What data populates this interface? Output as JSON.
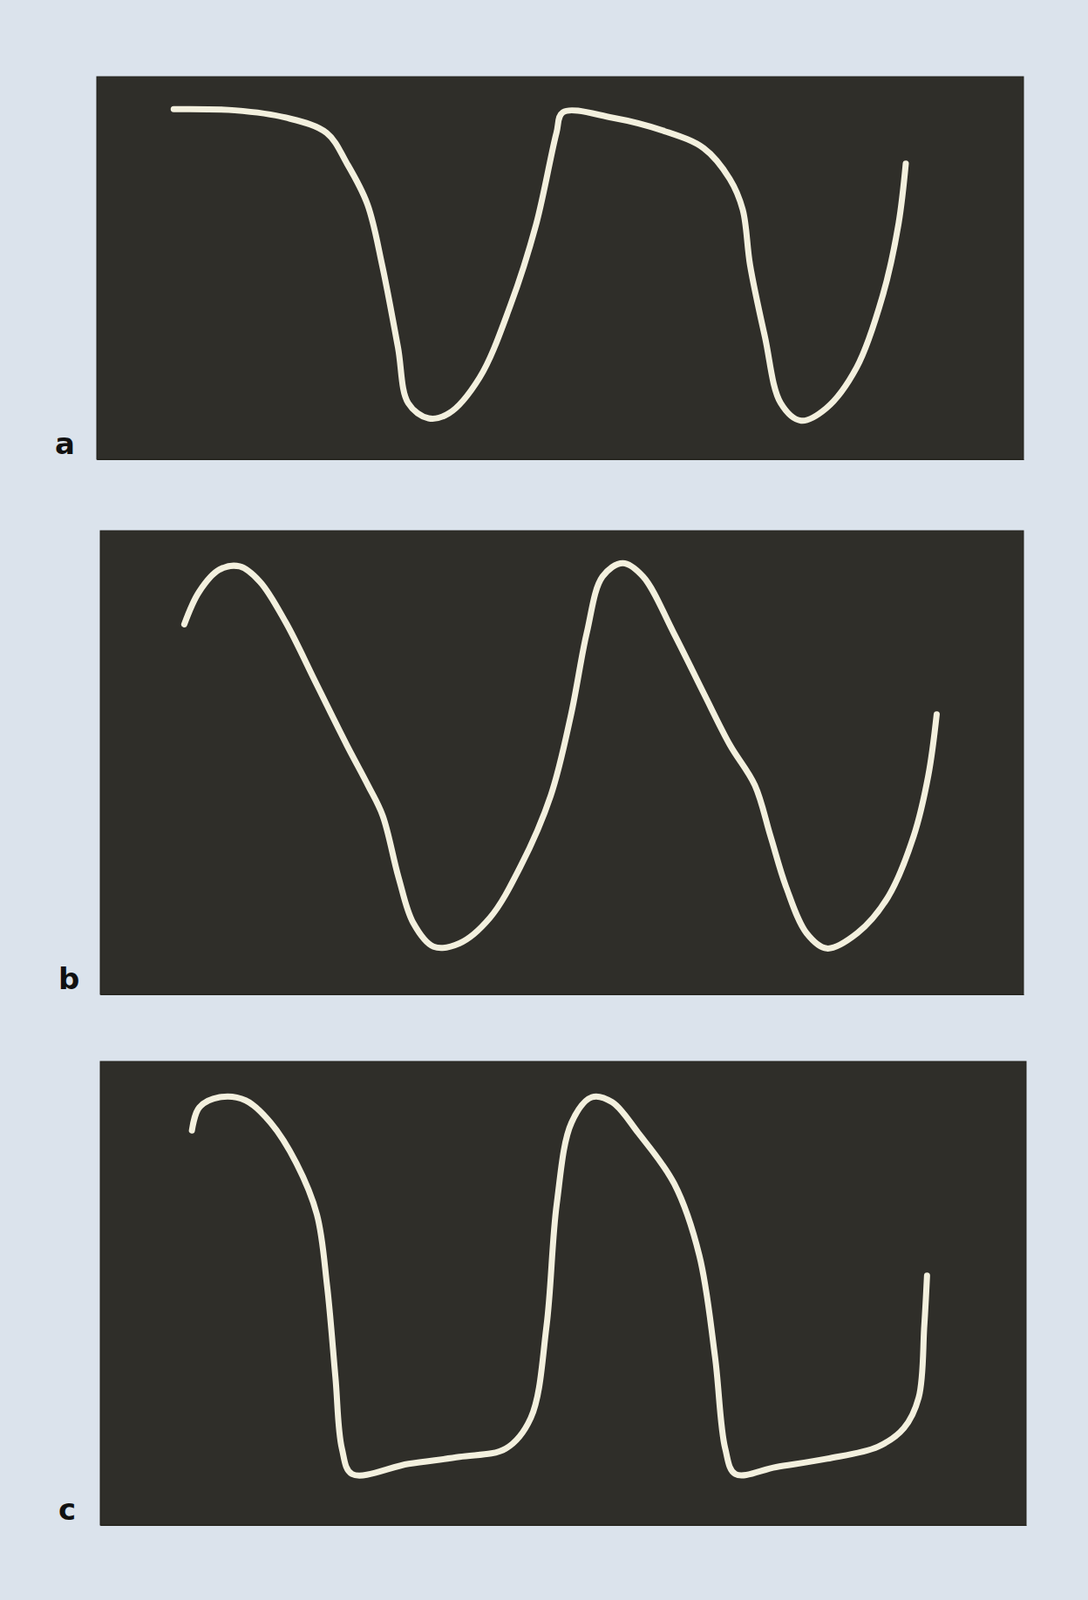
{
  "chart_data": [
    {
      "type": "line",
      "title": "a",
      "color": "#f3f0de",
      "tick_labels": false,
      "grid": false,
      "xlim": [
        0,
        100
      ],
      "ylim": [
        0,
        100
      ],
      "x": [
        8.3,
        14.9,
        20.4,
        24.8,
        27.0,
        29.2,
        30.8,
        32.5,
        33.6,
        35.8,
        38.0,
        41.3,
        44.6,
        47.4,
        49.6,
        50.3,
        55.6,
        61.1,
        65.5,
        68.3,
        69.7,
        70.5,
        72.1,
        73.8,
        76.0,
        78.7,
        82.0,
        84.8,
        86.5,
        87.3
      ],
      "values": [
        91.5,
        91.2,
        89.3,
        85.3,
        77.3,
        66.7,
        50.7,
        29.3,
        14.7,
        10.7,
        12.0,
        21.3,
        40.0,
        61.3,
        85.3,
        90.7,
        89.3,
        85.9,
        81.3,
        73.3,
        65.3,
        50.7,
        32.0,
        14.7,
        10.1,
        13.3,
        24.0,
        42.7,
        61.3,
        77.3
      ]
    },
    {
      "type": "line",
      "title": "b",
      "color": "#f3f0de",
      "tick_labels": false,
      "grid": false,
      "xlim": [
        0,
        100
      ],
      "ylim": [
        0,
        100
      ],
      "x": [
        9.1,
        10.7,
        12.9,
        15.1,
        17.3,
        20.1,
        23.4,
        26.7,
        29.0,
        30.6,
        32.3,
        33.9,
        36.1,
        38.9,
        42.2,
        45.5,
        48.8,
        51.0,
        52.7,
        54.4,
        56.6,
        58.8,
        62.1,
        65.4,
        68.2,
        70.9,
        72.6,
        74.3,
        76.5,
        78.7,
        82.0,
        85.3,
        88.1,
        89.7,
        90.6
      ],
      "values": [
        79.8,
        86.8,
        91.6,
        92.3,
        89.0,
        80.2,
        67.0,
        53.8,
        45.1,
        38.5,
        25.3,
        15.4,
        10.3,
        11.0,
        16.5,
        27.5,
        42.9,
        60.4,
        78.0,
        90.1,
        93.0,
        90.1,
        78.0,
        64.8,
        53.8,
        45.1,
        34.1,
        23.1,
        13.2,
        9.9,
        13.2,
        20.9,
        34.1,
        47.3,
        60.4
      ]
    },
    {
      "type": "line",
      "title": "c",
      "color": "#f3f0de",
      "tick_labels": false,
      "grid": false,
      "xlim": [
        0,
        100
      ],
      "ylim": [
        0,
        100
      ],
      "x": [
        9.9,
        10.7,
        12.9,
        15.7,
        18.4,
        21.2,
        23.4,
        24.5,
        25.4,
        26.1,
        27.2,
        33.3,
        38.8,
        43.8,
        46.5,
        48.2,
        49.3,
        50.9,
        53.1,
        55.3,
        58.1,
        62.0,
        64.7,
        66.4,
        67.5,
        68.6,
        73.0,
        78.5,
        84.0,
        86.8,
        88.4,
        89.0,
        89.3
      ],
      "values": [
        85.1,
        90.1,
        92.3,
        91.6,
        86.8,
        78.0,
        67.0,
        51.6,
        31.9,
        16.5,
        11.0,
        13.2,
        14.7,
        16.5,
        23.1,
        42.9,
        69.2,
        86.8,
        92.3,
        91.2,
        84.6,
        73.6,
        58.2,
        36.3,
        16.5,
        11.0,
        12.5,
        14.3,
        16.9,
        20.9,
        27.5,
        42.9,
        53.8
      ]
    }
  ]
}
